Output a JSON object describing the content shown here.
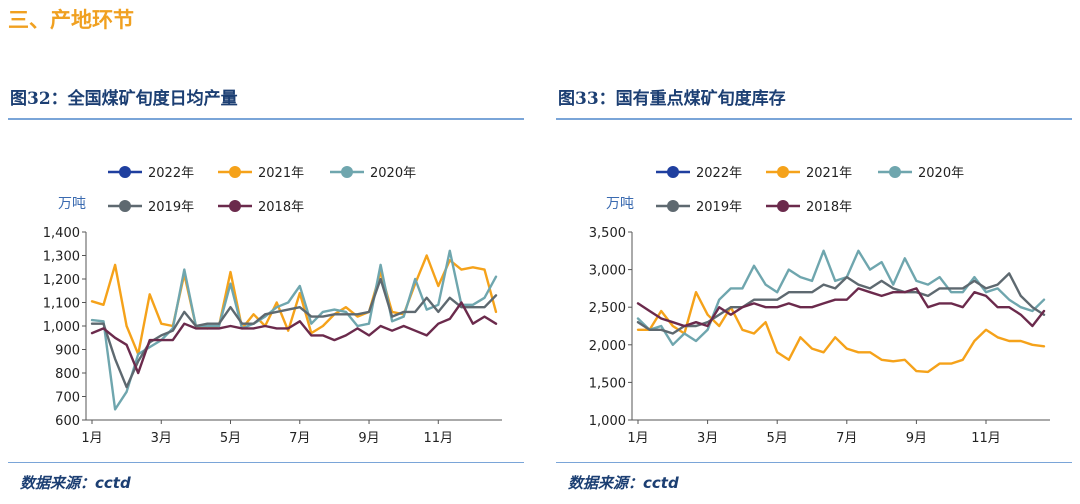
{
  "section_title": "三、产地环节",
  "charts": [
    {
      "title": "图32：全国煤矿旬度日均产量",
      "source": "数据来源：cctd",
      "chart_data": {
        "type": "line",
        "ylabel": "万吨",
        "ylim": [
          600,
          1400
        ],
        "yticks": [
          600,
          700,
          800,
          900,
          1000,
          1100,
          1200,
          1300,
          1400
        ],
        "ytick_labels": [
          "600",
          "700",
          "800",
          "900",
          "1,000",
          "1,100",
          "1,200",
          "1,300",
          "1,400"
        ],
        "x_count": 36,
        "xticks": [
          0,
          6,
          12,
          18,
          24,
          30
        ],
        "xtick_labels": [
          "1月",
          "3月",
          "5月",
          "7月",
          "9月",
          "11月"
        ],
        "legend": [
          "2022年",
          "2021年",
          "2020年",
          "2019年",
          "2018年"
        ],
        "series": [
          {
            "name": "2022年",
            "color": "#1f3f9f",
            "values": []
          },
          {
            "name": "2021年",
            "color": "#f5a21a",
            "values": [
              1105,
              1090,
              1260,
              1000,
              880,
              1135,
              1010,
              1000,
              1220,
              1000,
              990,
              1000,
              1230,
              990,
              1050,
              1000,
              1100,
              980,
              1140,
              970,
              1000,
              1050,
              1080,
              1040,
              1060,
              1230,
              1060,
              1050,
              1180,
              1300,
              1170,
              1280,
              1240,
              1250,
              1240,
              1060
            ]
          },
          {
            "name": "2020年",
            "color": "#6fa6ae",
            "values": [
              1025,
              1020,
              645,
              720,
              880,
              910,
              940,
              990,
              1240,
              1000,
              1000,
              1000,
              1180,
              990,
              1010,
              1040,
              1080,
              1100,
              1170,
              1010,
              1060,
              1070,
              1060,
              1000,
              1010,
              1260,
              1020,
              1040,
              1200,
              1070,
              1090,
              1320,
              1090,
              1090,
              1120,
              1210
            ]
          },
          {
            "name": "2019年",
            "color": "#5e6970",
            "values": [
              1010,
              1010,
              860,
              740,
              850,
              930,
              960,
              980,
              1060,
              1000,
              1010,
              1010,
              1080,
              1010,
              1010,
              1050,
              1060,
              1070,
              1080,
              1040,
              1040,
              1050,
              1050,
              1050,
              1060,
              1200,
              1040,
              1060,
              1060,
              1120,
              1060,
              1120,
              1080,
              1080,
              1080,
              1130
            ]
          },
          {
            "name": "2018年",
            "color": "#6b2a4c",
            "values": [
              970,
              990,
              950,
              920,
              800,
              940,
              940,
              940,
              1010,
              990,
              990,
              990,
              1000,
              990,
              990,
              1000,
              990,
              990,
              1020,
              960,
              960,
              940,
              960,
              990,
              960,
              1000,
              980,
              1000,
              980,
              960,
              1010,
              1030,
              1100,
              1010,
              1040,
              1010
            ]
          }
        ]
      }
    },
    {
      "title": "图33：国有重点煤矿旬度库存",
      "source": "数据来源：cctd",
      "chart_data": {
        "type": "line",
        "ylabel": "万吨",
        "ylim": [
          1000,
          3500
        ],
        "yticks": [
          1000,
          1500,
          2000,
          2500,
          3000,
          3500
        ],
        "ytick_labels": [
          "1,000",
          "1,500",
          "2,000",
          "2,500",
          "3,000",
          "3,500"
        ],
        "x_count": 36,
        "xticks": [
          0,
          6,
          12,
          18,
          24,
          30
        ],
        "xtick_labels": [
          "1月",
          "3月",
          "5月",
          "7月",
          "9月",
          "11月"
        ],
        "legend": [
          "2022年",
          "2021年",
          "2020年",
          "2019年",
          "2018年"
        ],
        "series": [
          {
            "name": "2022年",
            "color": "#1f3f9f",
            "values": []
          },
          {
            "name": "2021年",
            "color": "#f5a21a",
            "values": [
              2200,
              2200,
              2450,
              2250,
              2150,
              2700,
              2400,
              2250,
              2500,
              2200,
              2150,
              2300,
              1900,
              1800,
              2100,
              1950,
              1900,
              2100,
              1950,
              1900,
              1900,
              1800,
              1780,
              1800,
              1650,
              1640,
              1750,
              1750,
              1800,
              2050,
              2200,
              2100,
              2050,
              2050,
              2000,
              1980
            ]
          },
          {
            "name": "2020年",
            "color": "#6fa6ae",
            "values": [
              2350,
              2200,
              2250,
              2000,
              2150,
              2050,
              2200,
              2600,
              2750,
              2750,
              3050,
              2800,
              2700,
              3000,
              2900,
              2850,
              3250,
              2850,
              2900,
              3250,
              3000,
              3100,
              2800,
              3150,
              2850,
              2800,
              2900,
              2700,
              2700,
              2900,
              2700,
              2750,
              2600,
              2500,
              2450,
              2600
            ]
          },
          {
            "name": "2019年",
            "color": "#5e6970",
            "values": [
              2300,
              2200,
              2200,
              2150,
              2250,
              2250,
              2300,
              2400,
              2500,
              2500,
              2600,
              2600,
              2600,
              2700,
              2700,
              2700,
              2800,
              2750,
              2900,
              2800,
              2750,
              2850,
              2750,
              2700,
              2700,
              2650,
              2750,
              2750,
              2750,
              2850,
              2750,
              2800,
              2950,
              2650,
              2500,
              2400
            ]
          },
          {
            "name": "2018年",
            "color": "#6b2a4c",
            "values": [
              2550,
              2450,
              2350,
              2300,
              2250,
              2300,
              2250,
              2500,
              2400,
              2500,
              2550,
              2500,
              2500,
              2550,
              2500,
              2500,
              2550,
              2600,
              2600,
              2750,
              2700,
              2650,
              2700,
              2700,
              2750,
              2500,
              2550,
              2550,
              2500,
              2700,
              2650,
              2500,
              2500,
              2400,
              2250,
              2450
            ]
          }
        ]
      }
    }
  ]
}
